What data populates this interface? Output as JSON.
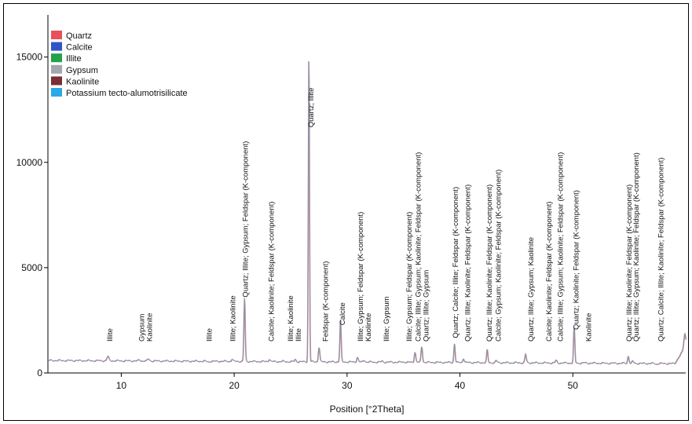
{
  "chart_data": {
    "type": "line",
    "title": "",
    "xlabel": "Position [°2Theta]",
    "ylabel": "",
    "xlim": [
      3.5,
      60
    ],
    "ylim": [
      0,
      17000
    ],
    "xticks": [
      10,
      20,
      30,
      40,
      50
    ],
    "yticks": [
      0,
      5000,
      10000,
      15000
    ],
    "grid": false,
    "legend_position": "top-left",
    "legend": [
      {
        "name": "Quartz",
        "color": "#e8505a"
      },
      {
        "name": "Calcite",
        "color": "#2f56c8"
      },
      {
        "name": "Illite",
        "color": "#22a24a"
      },
      {
        "name": "Gypsum",
        "color": "#a4a7b0"
      },
      {
        "name": "Kaolinite",
        "color": "#7a2e32"
      },
      {
        "name": "Potassium tecto-alumotrisilicate",
        "color": "#2aa9e6"
      }
    ],
    "pattern": {
      "baseline": 600,
      "baseline_end": 450,
      "end_rise": 800,
      "peaks": [
        {
          "x": 8.8,
          "y": 800,
          "w": 0.12
        },
        {
          "x": 11.6,
          "y": 650,
          "w": 0.1
        },
        {
          "x": 12.4,
          "y": 700,
          "w": 0.1
        },
        {
          "x": 17.7,
          "y": 560,
          "w": 0.1
        },
        {
          "x": 19.8,
          "y": 700,
          "w": 0.1
        },
        {
          "x": 20.9,
          "y": 3600,
          "w": 0.08
        },
        {
          "x": 23.1,
          "y": 720,
          "w": 0.1
        },
        {
          "x": 24.3,
          "y": 620,
          "w": 0.1
        },
        {
          "x": 25.4,
          "y": 700,
          "w": 0.1
        },
        {
          "x": 26.6,
          "y": 15600,
          "w": 0.07
        },
        {
          "x": 27.5,
          "y": 1300,
          "w": 0.09
        },
        {
          "x": 29.4,
          "y": 2600,
          "w": 0.08
        },
        {
          "x": 30.9,
          "y": 820,
          "w": 0.1
        },
        {
          "x": 31.5,
          "y": 700,
          "w": 0.1
        },
        {
          "x": 33.1,
          "y": 650,
          "w": 0.1
        },
        {
          "x": 34.9,
          "y": 620,
          "w": 0.1
        },
        {
          "x": 36.0,
          "y": 1100,
          "w": 0.09
        },
        {
          "x": 36.6,
          "y": 1350,
          "w": 0.09
        },
        {
          "x": 39.5,
          "y": 1500,
          "w": 0.08
        },
        {
          "x": 40.3,
          "y": 800,
          "w": 0.09
        },
        {
          "x": 42.4,
          "y": 1200,
          "w": 0.08
        },
        {
          "x": 43.2,
          "y": 700,
          "w": 0.09
        },
        {
          "x": 45.8,
          "y": 1000,
          "w": 0.09
        },
        {
          "x": 47.6,
          "y": 600,
          "w": 0.1
        },
        {
          "x": 48.5,
          "y": 720,
          "w": 0.1
        },
        {
          "x": 50.1,
          "y": 2300,
          "w": 0.08
        },
        {
          "x": 51.0,
          "y": 620,
          "w": 0.1
        },
        {
          "x": 54.9,
          "y": 950,
          "w": 0.09
        },
        {
          "x": 55.3,
          "y": 700,
          "w": 0.09
        },
        {
          "x": 57.4,
          "y": 560,
          "w": 0.1
        },
        {
          "x": 59.9,
          "y": 1300,
          "w": 0.12
        }
      ]
    },
    "annotations": [
      {
        "x": 9.0,
        "text": "Illite"
      },
      {
        "x": 11.8,
        "text": "Gypsum"
      },
      {
        "x": 12.5,
        "text": "Kaolinite"
      },
      {
        "x": 17.8,
        "text": "Illite"
      },
      {
        "x": 19.9,
        "text": "Illite; Kaolinite"
      },
      {
        "x": 21.0,
        "text": "Quartz; Illite; Gypsum; Feldspar (K-component)"
      },
      {
        "x": 23.3,
        "text": "Calcite; Kaolinite; Feldspar (K-component)"
      },
      {
        "x": 25.0,
        "text": "Illite; Kaolinite"
      },
      {
        "x": 25.7,
        "text": "Illite"
      },
      {
        "x": 26.8,
        "text": "Quartz; Illite"
      },
      {
        "x": 28.1,
        "text": "Feldspar (K-component)"
      },
      {
        "x": 29.6,
        "text": "Calcite"
      },
      {
        "x": 31.2,
        "text": "Illite; Gypsum; Feldspar (K-component)"
      },
      {
        "x": 31.9,
        "text": "Kaolinite"
      },
      {
        "x": 33.5,
        "text": "Illite; Gypsum"
      },
      {
        "x": 35.5,
        "text": "Illite; Gypsum; Feldspar (K-component)"
      },
      {
        "x": 36.3,
        "text": "Calcite; Illite; Gypsum; Kaolinite; Feldspar (K-component)"
      },
      {
        "x": 37.0,
        "text": "Quartz; Illite; Gypsum"
      },
      {
        "x": 39.6,
        "text": "Quartz; Calcite; Illite; Feldspar (K-component)"
      },
      {
        "x": 40.7,
        "text": "Quartz; Illite; Kaolinite; Feldspar (K-component)"
      },
      {
        "x": 42.6,
        "text": "Quartz; Illite; Kaolinite; Feldspar (K-component)"
      },
      {
        "x": 43.4,
        "text": "Calcite; Gypsum; Kaolinite; Feldspar (K-component)"
      },
      {
        "x": 46.3,
        "text": "Quartz; Illite; Gypsum; Kaolinite"
      },
      {
        "x": 47.9,
        "text": "Calcite; Kaolinite; Feldspar (K-component)"
      },
      {
        "x": 48.9,
        "text": "Calcite; Illite; Gypsum; Kaolinite; Feldspar (K-component)"
      },
      {
        "x": 50.3,
        "text": "Quartz; Kaolinite; Feldspar (K-component)"
      },
      {
        "x": 51.4,
        "text": "Kaolinite"
      },
      {
        "x": 55.0,
        "text": "Quartz; Illite; Kaolinite; Feldspar (K-component)"
      },
      {
        "x": 55.6,
        "text": "Quartz; Illite; Gypsum; Kaolinite; Feldspar (K-component)"
      },
      {
        "x": 57.8,
        "text": "Quartz; Calcite; Illite; Kaolinite; Feldspar (K-component)"
      }
    ]
  }
}
